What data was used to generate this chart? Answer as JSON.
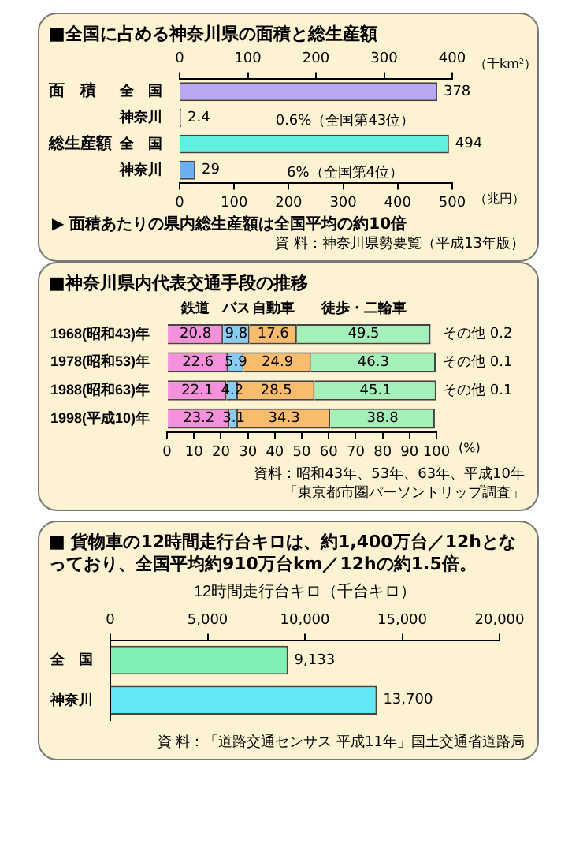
{
  "chart_data": [
    {
      "type": "bar",
      "orientation": "horizontal",
      "title": "■全国に占める神奈川県の面積と総生産額",
      "categories": [
        "全　国",
        "神奈川",
        "全　国",
        "神奈川"
      ],
      "series": [
        {
          "axis": "x2",
          "colors": [
            "#b8a8f0",
            "#f0a0e0",
            "#60f0e0",
            "#6ab0f0"
          ],
          "values": [
            378,
            2.4,
            null,
            null
          ]
        },
        {
          "colors": [
            "#b8a8f0",
            "#f0a0e0",
            "#60f0e0",
            "#6ab0f0"
          ],
          "values": [
            null,
            null,
            494,
            29
          ]
        }
      ],
      "xlim": [
        0,
        500
      ],
      "xticks": [
        0,
        100,
        200,
        300,
        400,
        500
      ],
      "xlabel": "（兆円）",
      "x2lim": [
        0,
        400
      ],
      "x2ticks": [
        0,
        100,
        200,
        300,
        400
      ],
      "x2label": "（千km²）",
      "data_labels": true,
      "grid": false,
      "annotations": [
        "面　積",
        "総生産額",
        "0.6%（全国第43位）",
        "6%（全国第4位）",
        "▶ 面積あたりの県内総生産額は全国平均の約10倍",
        "資 料：神奈川県勢要覧（平成13年版）"
      ]
    },
    {
      "type": "bar",
      "orientation": "horizontal",
      "stacked": true,
      "title": "■神奈川県内代表交通手段の推移",
      "categories": [
        "1968(昭和43)年",
        "1978(昭和53)年",
        "1988(昭和63)年",
        "1998(平成10)年"
      ],
      "series": [
        {
          "name": "鉄道",
          "color": "#f490dc",
          "values": [
            20.8,
            22.6,
            22.1,
            23.2
          ]
        },
        {
          "name": "バス",
          "color": "#88ccf4",
          "values": [
            9.8,
            5.9,
            4.2,
            3.1
          ]
        },
        {
          "name": "自動車",
          "color": "#f8bc6c",
          "values": [
            17.6,
            24.9,
            28.5,
            34.3
          ]
        },
        {
          "name": "徒歩・二輪車",
          "color": "#a4f0b8",
          "values": [
            49.5,
            46.3,
            45.1,
            38.8
          ]
        },
        {
          "name": "その他",
          "color": "#c0c0c0",
          "values": [
            0.2,
            0.1,
            0.1,
            null
          ],
          "value_labels": [
            "0.2",
            "0.1",
            "0.1",
            null
          ]
        }
      ],
      "xlim": [
        0,
        100
      ],
      "xticks": [
        0,
        10,
        20,
        30,
        40,
        50,
        60,
        70,
        80,
        90,
        100
      ],
      "xlabel": "(%)",
      "data_labels": true,
      "grid": false,
      "annotations": [
        "資料：昭和43年、53年、63年、平成10年",
        "「東京都市圏パーソントリップ調査」"
      ]
    },
    {
      "type": "bar",
      "orientation": "horizontal",
      "title": "■ 貨物車の12時間走行台キロは、約1,400万台／12hとなっており、全国平均約910万台km／12hの約1.5倍。",
      "categories": [
        "全　国",
        "神奈川"
      ],
      "values": [
        9133,
        13700
      ],
      "colors": [
        "#80f0b4",
        "#60e8f4"
      ],
      "value_labels": [
        "9,133",
        "13,700"
      ],
      "xlim": [
        0,
        20000
      ],
      "xticks": [
        0,
        {
          "value": 5000,
          "label": "5,000"
        },
        {
          "value": 10000,
          "label": "10,000"
        },
        {
          "value": 15000,
          "label": "15,000"
        },
        {
          "value": 20000,
          "label": "20,000"
        }
      ],
      "xlabel": "12時間走行台キロ（千台キロ）",
      "grid": false,
      "annotations": [
        "資 料：「道路交通センサス 平成11年」国土交通省道路局"
      ]
    }
  ]
}
